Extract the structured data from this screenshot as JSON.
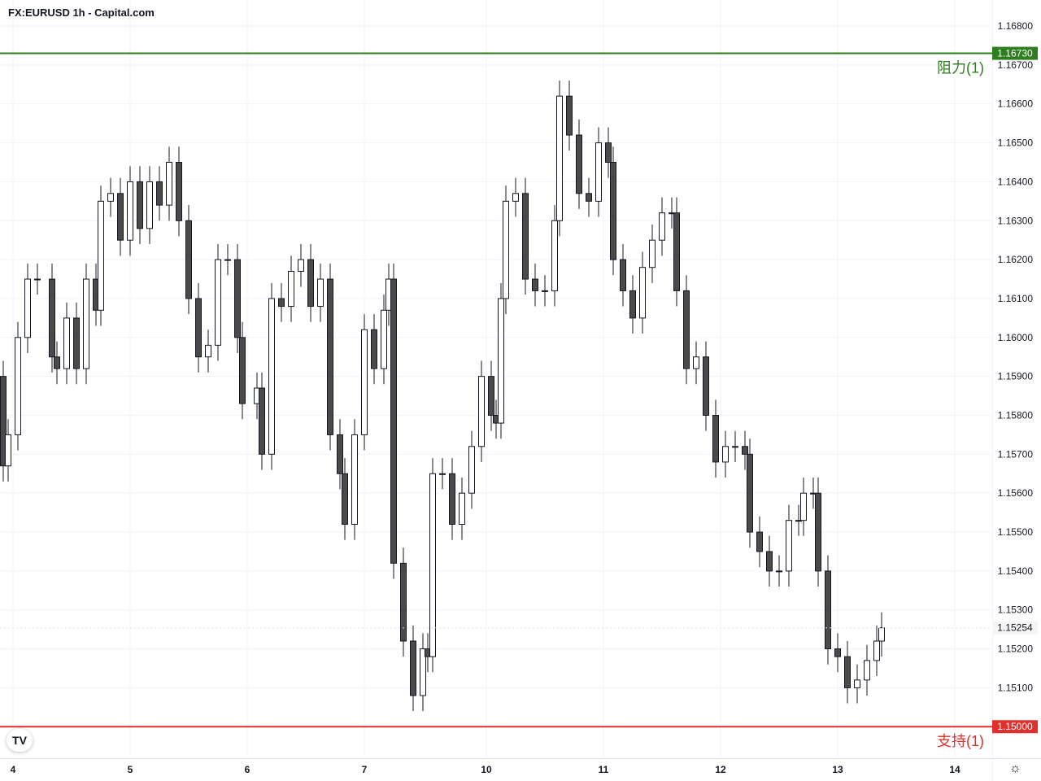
{
  "title": "FX:EURUSD 1h - Capital.com",
  "chart_data": {
    "type": "candlestick",
    "title": "FX:EURUSD 1h - Capital.com",
    "ylim": [
      1.14919,
      1.16867
    ],
    "y_ticks": [
      "1.16800",
      "1.16700",
      "1.16600",
      "1.16500",
      "1.16400",
      "1.16300",
      "1.16200",
      "1.16100",
      "1.16000",
      "1.15900",
      "1.15800",
      "1.15700",
      "1.15600",
      "1.15500",
      "1.15400",
      "1.15300",
      "1.15200",
      "1.15100"
    ],
    "x_ticks": [
      {
        "bar": 0,
        "label": "4"
      },
      {
        "bar": 24,
        "label": "5"
      },
      {
        "bar": 48,
        "label": "6"
      },
      {
        "bar": 72,
        "label": "7"
      },
      {
        "bar": 97,
        "label": "10"
      },
      {
        "bar": 121,
        "label": "11"
      },
      {
        "bar": 145,
        "label": "12"
      },
      {
        "bar": 169,
        "label": "13"
      },
      {
        "bar": 193,
        "label": "14"
      }
    ],
    "first_open": 1.159,
    "bars": [
      -2,
      -1,
      1,
      3,
      5,
      8,
      9,
      11,
      13,
      15,
      17,
      18,
      20,
      22,
      24,
      26,
      28,
      30,
      32,
      34,
      36,
      38,
      40,
      42,
      44,
      46,
      47,
      50,
      51,
      53,
      55,
      57,
      59,
      61,
      63,
      65,
      67,
      68,
      70,
      72,
      74,
      76,
      77,
      78,
      80,
      82,
      84,
      85,
      86,
      88,
      90,
      92,
      94,
      96,
      98,
      99,
      100,
      101,
      103,
      105,
      107,
      109,
      111,
      112,
      114,
      116,
      118,
      120,
      122,
      123,
      125,
      127,
      129,
      131,
      133,
      135,
      136,
      138,
      140,
      142,
      144,
      146,
      148,
      150,
      151,
      153,
      155,
      157,
      159,
      161,
      162,
      164,
      165,
      167,
      169,
      171,
      173,
      175,
      177,
      178
    ],
    "close": [
      1.1567,
      1.1575,
      1.16,
      1.1615,
      1.1615,
      1.1595,
      1.1592,
      1.1605,
      1.1592,
      1.1615,
      1.1607,
      1.1635,
      1.1637,
      1.1625,
      1.164,
      1.1628,
      1.164,
      1.1634,
      1.1645,
      1.163,
      1.161,
      1.1595,
      1.1598,
      1.162,
      1.162,
      1.16,
      1.1583,
      1.1587,
      1.157,
      1.161,
      1.1608,
      1.1617,
      1.162,
      1.1608,
      1.1615,
      1.1575,
      1.1565,
      1.1552,
      1.1575,
      1.1602,
      1.1592,
      1.1607,
      1.1615,
      1.1542,
      1.1522,
      1.1508,
      1.152,
      1.1518,
      1.1565,
      1.1565,
      1.1552,
      1.156,
      1.1572,
      1.159,
      1.158,
      1.1578,
      1.161,
      1.1635,
      1.1637,
      1.1615,
      1.1612,
      1.1612,
      1.163,
      1.1662,
      1.1652,
      1.1637,
      1.1635,
      1.165,
      1.1645,
      1.162,
      1.1612,
      1.1605,
      1.1618,
      1.1625,
      1.1632,
      1.1632,
      1.1612,
      1.1592,
      1.1595,
      1.158,
      1.1568,
      1.1572,
      1.1572,
      1.157,
      1.155,
      1.1545,
      1.154,
      1.154,
      1.1553,
      1.1553,
      1.156,
      1.156,
      1.154,
      1.152,
      1.1518,
      1.151,
      1.1512,
      1.1517,
      1.1522,
      1.15254
    ],
    "current_price": "1.15254",
    "levels": [
      {
        "name": "阻力(1)",
        "value": 1.1673,
        "label": "1.16730",
        "color": "#2e7d1f"
      },
      {
        "name": "支持(1)",
        "value": 1.15,
        "label": "1.15000",
        "color": "#e0302c"
      }
    ],
    "colors": {
      "up": "#ffffff",
      "down": "#4a4a4a",
      "border": "#131722",
      "grid": "#f0f3fa"
    }
  }
}
